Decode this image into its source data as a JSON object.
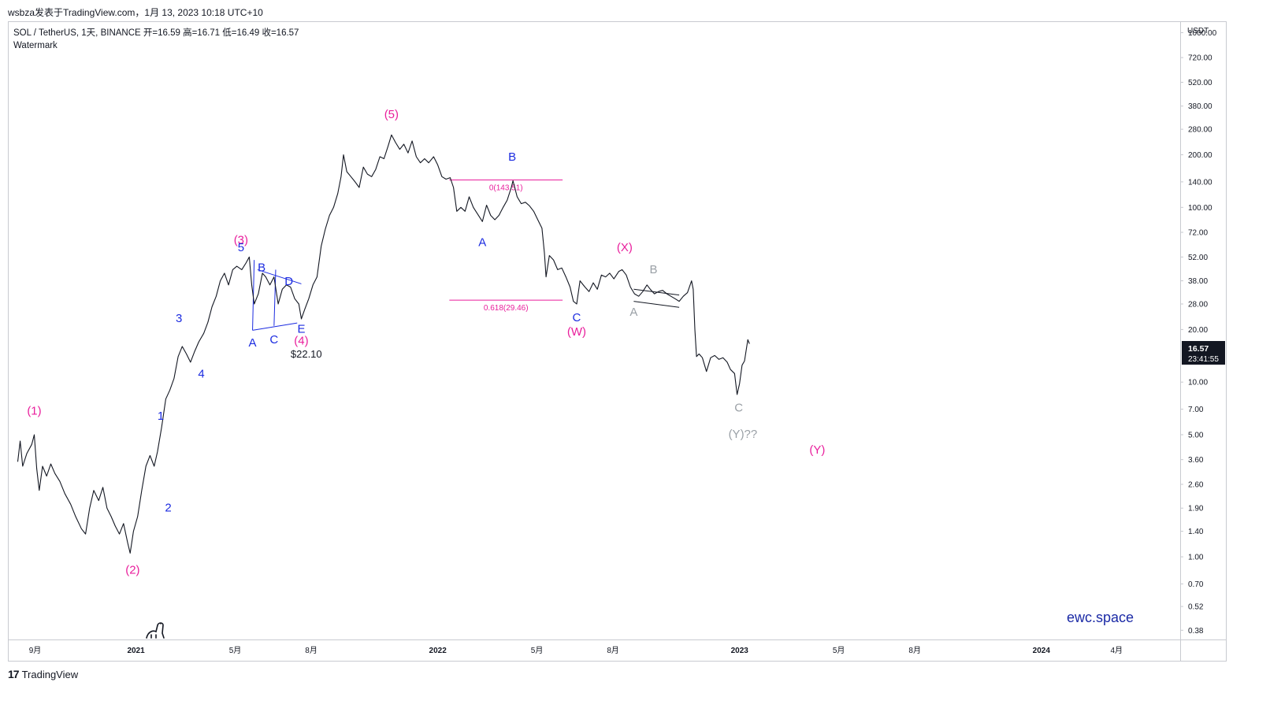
{
  "header": {
    "published_by": "wsbza发表于TradingView.com，1月 13, 2023 10:18 UTC+10"
  },
  "legend": {
    "symbol_line": "SOL / TetherUS, 1天, BINANCE  开=16.59  高=16.71  低=16.49  收=16.57",
    "indicator": "Watermark"
  },
  "footer": {
    "brand": "TradingView",
    "watermark": "ewc.space"
  },
  "price_axis": {
    "currency": "USDT",
    "current_price": "16.57",
    "countdown": "23:41:55",
    "tick_labels": [
      "1000.00",
      "720.00",
      "520.00",
      "380.00",
      "280.00",
      "200.00",
      "140.00",
      "100.00",
      "72.00",
      "52.00",
      "38.00",
      "28.00",
      "20.00",
      "10.00",
      "7.00",
      "5.00",
      "3.60",
      "2.60",
      "1.90",
      "1.40",
      "1.00",
      "0.70",
      "0.52",
      "0.38"
    ]
  },
  "chart_data": {
    "type": "line",
    "title": "SOL / TetherUS, 1天, BINANCE",
    "y_scale": "log",
    "ylim": [
      0.34,
      1150
    ],
    "xlim": [
      "2020-08-01",
      "2024-06-15"
    ],
    "x_tick_labels": [
      {
        "date": "2020-09-01",
        "label": "9月"
      },
      {
        "date": "2021-01-01",
        "label": "2021"
      },
      {
        "date": "2021-05-01",
        "label": "5月"
      },
      {
        "date": "2021-08-01",
        "label": "8月"
      },
      {
        "date": "2022-01-01",
        "label": "2022"
      },
      {
        "date": "2022-05-01",
        "label": "5月"
      },
      {
        "date": "2022-08-01",
        "label": "8月"
      },
      {
        "date": "2023-01-01",
        "label": "2023"
      },
      {
        "date": "2023-05-01",
        "label": "5月"
      },
      {
        "date": "2023-08-01",
        "label": "8月"
      },
      {
        "date": "2024-01-01",
        "label": "2024"
      },
      {
        "date": "2024-04-01",
        "label": "4月"
      }
    ],
    "price_series": {
      "name": "SOL / TetherUS",
      "color": "#131722",
      "points": [
        [
          "2020-08-11",
          3.5
        ],
        [
          "2020-08-14",
          4.6
        ],
        [
          "2020-08-17",
          3.3
        ],
        [
          "2020-08-22",
          3.9
        ],
        [
          "2020-08-28",
          4.4
        ],
        [
          "2020-08-31",
          5.0
        ],
        [
          "2020-09-03",
          3.2
        ],
        [
          "2020-09-06",
          2.4
        ],
        [
          "2020-09-10",
          3.3
        ],
        [
          "2020-09-15",
          2.9
        ],
        [
          "2020-09-20",
          3.4
        ],
        [
          "2020-09-25",
          3.0
        ],
        [
          "2020-10-01",
          2.7
        ],
        [
          "2020-10-07",
          2.3
        ],
        [
          "2020-10-14",
          2.0
        ],
        [
          "2020-10-20",
          1.7
        ],
        [
          "2020-10-27",
          1.45
        ],
        [
          "2020-11-01",
          1.35
        ],
        [
          "2020-11-06",
          1.9
        ],
        [
          "2020-11-11",
          2.4
        ],
        [
          "2020-11-17",
          2.1
        ],
        [
          "2020-11-22",
          2.5
        ],
        [
          "2020-11-27",
          1.9
        ],
        [
          "2020-12-02",
          1.7
        ],
        [
          "2020-12-07",
          1.5
        ],
        [
          "2020-12-12",
          1.35
        ],
        [
          "2020-12-17",
          1.55
        ],
        [
          "2020-12-22",
          1.2
        ],
        [
          "2020-12-25",
          1.05
        ],
        [
          "2020-12-29",
          1.4
        ],
        [
          "2021-01-03",
          1.7
        ],
        [
          "2021-01-08",
          2.4
        ],
        [
          "2021-01-13",
          3.3
        ],
        [
          "2021-01-18",
          3.8
        ],
        [
          "2021-01-23",
          3.3
        ],
        [
          "2021-01-27",
          4.0
        ],
        [
          "2021-02-01",
          5.5
        ],
        [
          "2021-02-06",
          8.0
        ],
        [
          "2021-02-11",
          9.0
        ],
        [
          "2021-02-16",
          10.5
        ],
        [
          "2021-02-21",
          14.0
        ],
        [
          "2021-02-26",
          16.0
        ],
        [
          "2021-03-03",
          14.5
        ],
        [
          "2021-03-08",
          13.0
        ],
        [
          "2021-03-13",
          15.0
        ],
        [
          "2021-03-18",
          17.0
        ],
        [
          "2021-03-24",
          19.0
        ],
        [
          "2021-03-29",
          22.0
        ],
        [
          "2021-04-03",
          27.0
        ],
        [
          "2021-04-08",
          31.0
        ],
        [
          "2021-04-13",
          38.0
        ],
        [
          "2021-04-18",
          42.0
        ],
        [
          "2021-04-23",
          36.0
        ],
        [
          "2021-04-28",
          44.0
        ],
        [
          "2021-05-03",
          46.0
        ],
        [
          "2021-05-09",
          44.0
        ],
        [
          "2021-05-14",
          48.0
        ],
        [
          "2021-05-18",
          52.0
        ],
        [
          "2021-05-21",
          36.0
        ],
        [
          "2021-05-24",
          28.0
        ],
        [
          "2021-05-29",
          32.0
        ],
        [
          "2021-06-03",
          42.0
        ],
        [
          "2021-06-07",
          40.0
        ],
        [
          "2021-06-12",
          36.0
        ],
        [
          "2021-06-17",
          40.0
        ],
        [
          "2021-06-22",
          28.0
        ],
        [
          "2021-06-27",
          34.0
        ],
        [
          "2021-07-02",
          36.0
        ],
        [
          "2021-07-07",
          35.0
        ],
        [
          "2021-07-12",
          30.0
        ],
        [
          "2021-07-17",
          28.0
        ],
        [
          "2021-07-20",
          23.0
        ],
        [
          "2021-07-24",
          26.0
        ],
        [
          "2021-07-29",
          30.0
        ],
        [
          "2021-08-03",
          36.0
        ],
        [
          "2021-08-08",
          40.0
        ],
        [
          "2021-08-13",
          60.0
        ],
        [
          "2021-08-18",
          75.0
        ],
        [
          "2021-08-23",
          90.0
        ],
        [
          "2021-08-28",
          100.0
        ],
        [
          "2021-09-02",
          120.0
        ],
        [
          "2021-09-06",
          150.0
        ],
        [
          "2021-09-09",
          200.0
        ],
        [
          "2021-09-13",
          160.0
        ],
        [
          "2021-09-18",
          150.0
        ],
        [
          "2021-09-23",
          140.0
        ],
        [
          "2021-09-28",
          130.0
        ],
        [
          "2021-10-03",
          170.0
        ],
        [
          "2021-10-08",
          155.0
        ],
        [
          "2021-10-13",
          150.0
        ],
        [
          "2021-10-18",
          165.0
        ],
        [
          "2021-10-23",
          195.0
        ],
        [
          "2021-10-28",
          190.0
        ],
        [
          "2021-11-02",
          225.0
        ],
        [
          "2021-11-06",
          260.0
        ],
        [
          "2021-11-11",
          235.0
        ],
        [
          "2021-11-16",
          215.0
        ],
        [
          "2021-11-21",
          230.0
        ],
        [
          "2021-11-26",
          205.0
        ],
        [
          "2021-12-01",
          240.0
        ],
        [
          "2021-12-06",
          195.0
        ],
        [
          "2021-12-11",
          180.0
        ],
        [
          "2021-12-16",
          190.0
        ],
        [
          "2021-12-21",
          180.0
        ],
        [
          "2021-12-27",
          195.0
        ],
        [
          "2022-01-01",
          175.0
        ],
        [
          "2022-01-06",
          150.0
        ],
        [
          "2022-01-11",
          145.0
        ],
        [
          "2022-01-16",
          148.0
        ],
        [
          "2022-01-20",
          130.0
        ],
        [
          "2022-01-24",
          95.0
        ],
        [
          "2022-01-29",
          100.0
        ],
        [
          "2022-02-03",
          95.0
        ],
        [
          "2022-02-08",
          115.0
        ],
        [
          "2022-02-13",
          100.0
        ],
        [
          "2022-02-18",
          92.0
        ],
        [
          "2022-02-24",
          83.0
        ],
        [
          "2022-03-01",
          103.0
        ],
        [
          "2022-03-06",
          90.0
        ],
        [
          "2022-03-11",
          85.0
        ],
        [
          "2022-03-16",
          90.0
        ],
        [
          "2022-03-21",
          100.0
        ],
        [
          "2022-03-26",
          110.0
        ],
        [
          "2022-03-31",
          130.0
        ],
        [
          "2022-04-02",
          142.0
        ],
        [
          "2022-04-07",
          115.0
        ],
        [
          "2022-04-12",
          105.0
        ],
        [
          "2022-04-17",
          107.0
        ],
        [
          "2022-04-22",
          102.0
        ],
        [
          "2022-04-27",
          95.0
        ],
        [
          "2022-05-02",
          85.0
        ],
        [
          "2022-05-07",
          76.0
        ],
        [
          "2022-05-10",
          55.0
        ],
        [
          "2022-05-12",
          40.0
        ],
        [
          "2022-05-16",
          53.0
        ],
        [
          "2022-05-21",
          50.0
        ],
        [
          "2022-05-26",
          44.0
        ],
        [
          "2022-05-31",
          45.0
        ],
        [
          "2022-06-05",
          40.0
        ],
        [
          "2022-06-10",
          35.0
        ],
        [
          "2022-06-14",
          29.0
        ],
        [
          "2022-06-18",
          28.0
        ],
        [
          "2022-06-22",
          38.0
        ],
        [
          "2022-06-28",
          35.0
        ],
        [
          "2022-07-03",
          33.0
        ],
        [
          "2022-07-08",
          37.0
        ],
        [
          "2022-07-13",
          34.0
        ],
        [
          "2022-07-18",
          41.0
        ],
        [
          "2022-07-23",
          40.0
        ],
        [
          "2022-07-28",
          42.0
        ],
        [
          "2022-08-02",
          39.0
        ],
        [
          "2022-08-08",
          43.0
        ],
        [
          "2022-08-12",
          44.0
        ],
        [
          "2022-08-17",
          41.0
        ],
        [
          "2022-08-22",
          35.0
        ],
        [
          "2022-08-27",
          32.0
        ],
        [
          "2022-09-01",
          31.0
        ],
        [
          "2022-09-06",
          33.0
        ],
        [
          "2022-09-11",
          36.0
        ],
        [
          "2022-09-15",
          34.0
        ],
        [
          "2022-09-20",
          32.0
        ],
        [
          "2022-09-25",
          33.0
        ],
        [
          "2022-09-30",
          33.5
        ],
        [
          "2022-10-05",
          32.0
        ],
        [
          "2022-10-10",
          31.0
        ],
        [
          "2022-10-15",
          30.0
        ],
        [
          "2022-10-20",
          29.0
        ],
        [
          "2022-10-25",
          31.0
        ],
        [
          "2022-10-30",
          32.5
        ],
        [
          "2022-11-04",
          38.0
        ],
        [
          "2022-11-06",
          34.0
        ],
        [
          "2022-11-08",
          20.0
        ],
        [
          "2022-11-10",
          14.0
        ],
        [
          "2022-11-13",
          14.5
        ],
        [
          "2022-11-17",
          13.8
        ],
        [
          "2022-11-22",
          11.5
        ],
        [
          "2022-11-27",
          13.8
        ],
        [
          "2022-12-02",
          14.2
        ],
        [
          "2022-12-07",
          13.5
        ],
        [
          "2022-12-12",
          13.8
        ],
        [
          "2022-12-17",
          13.0
        ],
        [
          "2022-12-21",
          11.8
        ],
        [
          "2022-12-26",
          11.2
        ],
        [
          "2022-12-29",
          8.5
        ],
        [
          "2023-01-01",
          9.8
        ],
        [
          "2023-01-04",
          12.5
        ],
        [
          "2023-01-07",
          13.2
        ],
        [
          "2023-01-09",
          15.2
        ],
        [
          "2023-01-11",
          17.5
        ],
        [
          "2023-01-13",
          16.57
        ]
      ]
    },
    "wave_labels": [
      {
        "text": "(1)",
        "date": "2020-08-31",
        "price": 6.5,
        "color": "#e91e9c"
      },
      {
        "text": "(2)",
        "date": "2020-12-28",
        "price": 0.8,
        "color": "#e91e9c"
      },
      {
        "text": "1",
        "date": "2021-01-31",
        "price": 6.1,
        "color": "#1b2be0"
      },
      {
        "text": "2",
        "date": "2021-02-09",
        "price": 1.82,
        "color": "#1b2be0"
      },
      {
        "text": "3",
        "date": "2021-02-22",
        "price": 22.0,
        "color": "#1b2be0"
      },
      {
        "text": "4",
        "date": "2021-03-21",
        "price": 10.6,
        "color": "#1b2be0"
      },
      {
        "text": "(3)",
        "date": "2021-05-08",
        "price": 62.0,
        "color": "#e91e9c"
      },
      {
        "text": "5",
        "date": "2021-05-08",
        "price": 56.0,
        "color": "#1b2be0"
      },
      {
        "text": "A",
        "date": "2021-05-22",
        "price": 16.0,
        "color": "#1b2be0"
      },
      {
        "text": "B",
        "date": "2021-06-02",
        "price": 43.0,
        "color": "#1b2be0"
      },
      {
        "text": "C",
        "date": "2021-06-17",
        "price": 16.7,
        "color": "#1b2be0"
      },
      {
        "text": "D",
        "date": "2021-07-05",
        "price": 36.0,
        "color": "#1b2be0"
      },
      {
        "text": "E",
        "date": "2021-07-20",
        "price": 19.2,
        "color": "#1b2be0"
      },
      {
        "text": "(4)",
        "date": "2021-07-20",
        "price": 16.4,
        "color": "#e91e9c"
      },
      {
        "text": "(5)",
        "date": "2021-11-06",
        "price": 325.0,
        "color": "#e91e9c"
      },
      {
        "text": "A",
        "date": "2022-02-24",
        "price": 60.0,
        "color": "#1b2be0"
      },
      {
        "text": "B",
        "date": "2022-04-01",
        "price": 185.0,
        "color": "#1b2be0"
      },
      {
        "text": "C",
        "date": "2022-06-18",
        "price": 22.3,
        "color": "#1b2be0"
      },
      {
        "text": "(W)",
        "date": "2022-06-18",
        "price": 18.5,
        "color": "#e91e9c"
      },
      {
        "text": "(X)",
        "date": "2022-08-15",
        "price": 56.0,
        "color": "#e91e9c"
      },
      {
        "text": "B",
        "date": "2022-09-19",
        "price": 42.0,
        "color": "#9aa0a6"
      },
      {
        "text": "A",
        "date": "2022-08-26",
        "price": 24.0,
        "color": "#9aa0a6"
      },
      {
        "text": "C",
        "date": "2022-12-31",
        "price": 6.8,
        "color": "#9aa0a6"
      },
      {
        "text": "(Y)??",
        "date": "2023-01-05",
        "price": 4.8,
        "color": "#9aa0a6"
      },
      {
        "text": "(Y)",
        "date": "2023-04-05",
        "price": 3.9,
        "color": "#e91e9c"
      }
    ],
    "price_note": {
      "text": "$22.10",
      "date": "2021-07-26",
      "price": 13.8,
      "color": "#131722"
    },
    "fibonacci": {
      "color": "#e91e9c",
      "date_start": "2022-01-15",
      "date_end": "2022-06-01",
      "levels": [
        {
          "label": "0(143.51)",
          "price": 143.51
        },
        {
          "label": "0.618(29.46)",
          "price": 29.46
        }
      ]
    },
    "trendlines": [
      {
        "from": [
          "2021-05-22",
          19.8
        ],
        "to": [
          "2021-07-15",
          21.8
        ],
        "color": "#1b2be0"
      },
      {
        "from": [
          "2021-05-28",
          44.0
        ],
        "to": [
          "2021-07-20",
          36.5
        ],
        "color": "#1b2be0"
      },
      {
        "from": [
          "2021-05-22",
          19.8
        ],
        "to": [
          "2021-05-24",
          50.0
        ],
        "color": "#1b2be0"
      },
      {
        "from": [
          "2021-06-17",
          21.0
        ],
        "to": [
          "2021-06-19",
          44.0
        ],
        "color": "#1b2be0"
      },
      {
        "from": [
          "2022-08-26",
          29.0
        ],
        "to": [
          "2022-10-20",
          26.8
        ],
        "color": "#131722"
      },
      {
        "from": [
          "2022-08-26",
          34.0
        ],
        "to": [
          "2022-10-20",
          31.5
        ],
        "color": "#131722"
      }
    ]
  }
}
